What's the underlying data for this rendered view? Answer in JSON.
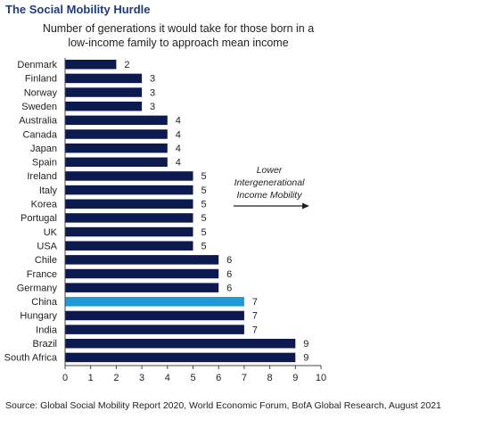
{
  "chart_data": {
    "type": "bar",
    "orientation": "horizontal",
    "title": "The Social Mobility Hurdle",
    "subtitle": "Number of generations it would take for those born in a low-income family to approach mean income",
    "categories": [
      "Denmark",
      "Finland",
      "Norway",
      "Sweden",
      "Australia",
      "Canada",
      "Japan",
      "Spain",
      "Ireland",
      "Italy",
      "Korea",
      "Portugal",
      "UK",
      "USA",
      "Chile",
      "France",
      "Germany",
      "China",
      "Hungary",
      "India",
      "Brazil",
      "South Africa"
    ],
    "values": [
      2,
      3,
      3,
      3,
      4,
      4,
      4,
      4,
      5,
      5,
      5,
      5,
      5,
      5,
      6,
      6,
      6,
      7,
      7,
      7,
      9,
      9
    ],
    "highlight": "China",
    "xlim": [
      0,
      10
    ],
    "xticks": [
      0,
      1,
      2,
      3,
      4,
      5,
      6,
      7,
      8,
      9,
      10
    ],
    "annotation": [
      "Lower",
      "Intergenerational",
      "Income Mobility"
    ],
    "grid": false,
    "legend": "none",
    "colors": {
      "bar": "#0d1a4f",
      "highlight": "#1f9ad6"
    }
  },
  "source": "Source: Global Social Mobility Report 2020, World Economic Forum, BofA Global Research, August 2021"
}
